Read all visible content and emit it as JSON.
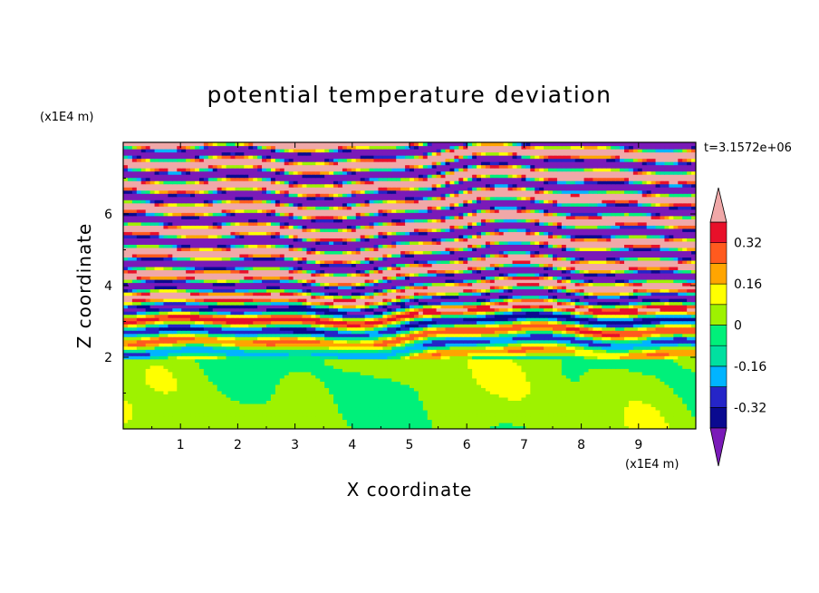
{
  "chart_data": {
    "type": "heatmap",
    "title": "potential temperature deviation",
    "xlabel": "X coordinate",
    "ylabel": "Z coordinate",
    "x_unit": "(x1E4 m)",
    "y_unit": "(x1E4 m)",
    "time_stamp": "t=3.1572e+06",
    "xlim": [
      0,
      10
    ],
    "ylim": [
      0,
      8
    ],
    "x_ticks": [
      1,
      2,
      3,
      4,
      5,
      6,
      7,
      8,
      9
    ],
    "y_ticks": [
      2,
      4,
      6
    ],
    "x_tick_labels": [
      "1",
      "2",
      "3",
      "4",
      "5",
      "6",
      "7",
      "8",
      "9"
    ],
    "y_tick_labels": [
      "2",
      "4",
      "6"
    ],
    "colorbar": {
      "levels": [
        -0.4,
        -0.32,
        -0.24,
        -0.16,
        -0.08,
        0,
        0.08,
        0.16,
        0.24,
        0.32,
        0.4
      ],
      "colors": [
        "#0a0a90",
        "#2525c8",
        "#00b4ff",
        "#00e0a0",
        "#00f07a",
        "#9ef200",
        "#ffff00",
        "#ffa500",
        "#ff5a1e",
        "#e8102a"
      ],
      "under_color": "#7a1ab8",
      "over_color": "#f0a8a8",
      "tick_values": [
        0.32,
        0.16,
        0,
        -0.16,
        -0.32
      ],
      "tick_labels": [
        "0.32",
        "0.16",
        "0",
        "-0.16",
        "-0.32"
      ],
      "extend": "both"
    },
    "field_description": [
      {
        "z_range": [
          0,
          2.0
        ],
        "pattern": "near-neutral layer, values mostly 0 to 0.08 with patches of -0.08 to 0"
      },
      {
        "z_range": [
          2.0,
          5.0
        ],
        "pattern": "mixed thin stratified bands spanning -0.4 to 0.4"
      },
      {
        "z_range": [
          5.0,
          8.0
        ],
        "pattern": "alternating horizontal bands above 0.4 and below -0.4"
      }
    ]
  }
}
